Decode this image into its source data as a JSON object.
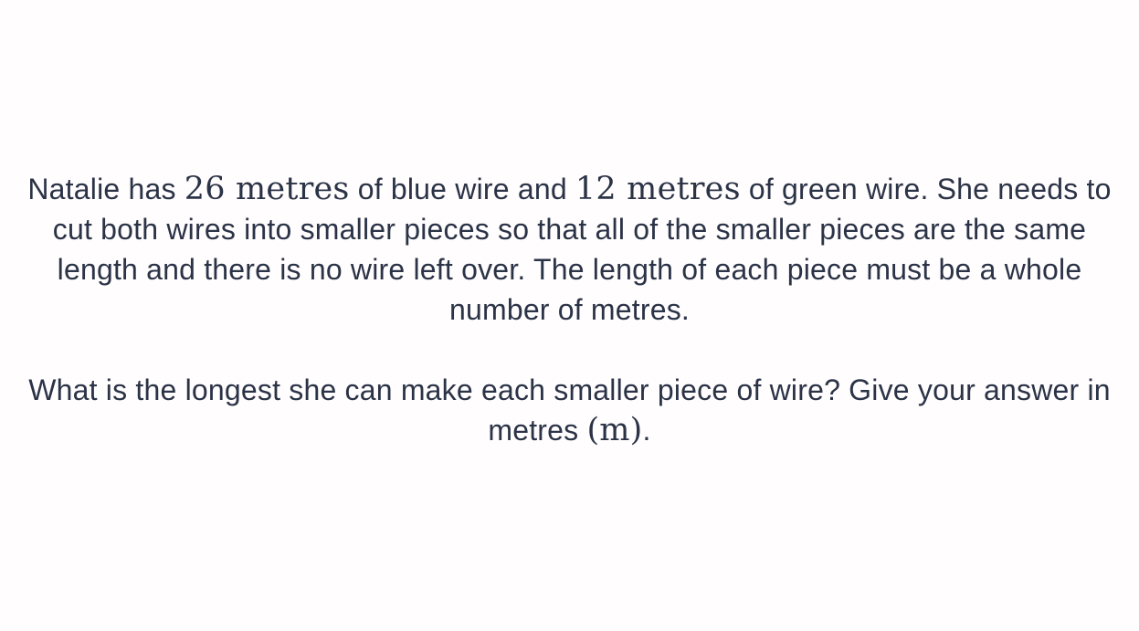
{
  "question": {
    "paragraph1": {
      "t1": "Natalie has ",
      "m1": "26 metres",
      "t2": " of blue wire and ",
      "m2": "12 metres",
      "t3": " of green wire. She needs to cut both wires into smaller pieces so that all of the smaller pieces are the same length and there is no wire left over. The length of each piece must be a whole number of metres."
    },
    "paragraph2": {
      "t1": "What is the longest she can make each smaller piece of wire? Give your answer in metres ",
      "m1": "(m)",
      "t2": "."
    }
  }
}
